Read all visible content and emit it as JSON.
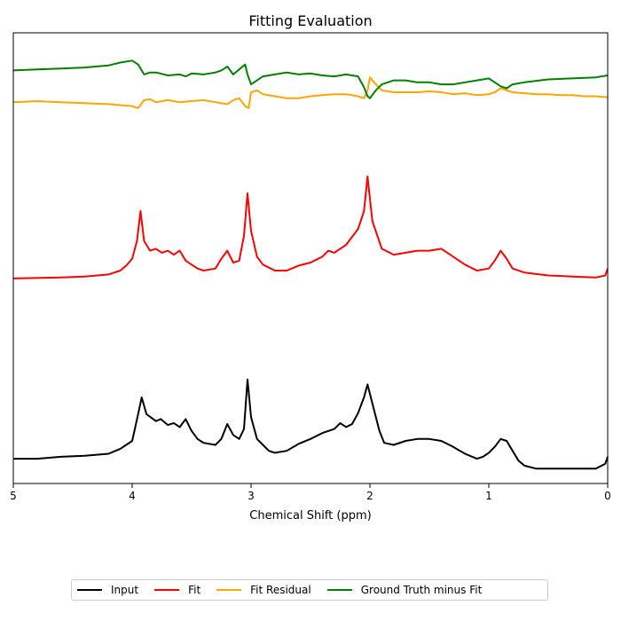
{
  "chart_data": {
    "type": "line",
    "title": "Fitting Evaluation",
    "xlabel": "Chemical Shift (ppm)",
    "ylabel": "",
    "xlim": [
      5,
      0
    ],
    "x_inverted": true,
    "x_ticks": [
      5,
      4,
      3,
      2,
      1,
      0
    ],
    "y_ticks_visible": false,
    "grid": false,
    "legend_position": "bottom-center",
    "series": [
      {
        "name": "Input",
        "color": "#000000",
        "x": [
          5.0,
          4.8,
          4.6,
          4.4,
          4.2,
          4.1,
          4.0,
          3.95,
          3.92,
          3.88,
          3.8,
          3.76,
          3.7,
          3.65,
          3.6,
          3.55,
          3.5,
          3.45,
          3.4,
          3.3,
          3.25,
          3.2,
          3.15,
          3.1,
          3.06,
          3.03,
          3.0,
          2.95,
          2.9,
          2.85,
          2.8,
          2.7,
          2.6,
          2.5,
          2.4,
          2.3,
          2.25,
          2.2,
          2.15,
          2.1,
          2.05,
          2.02,
          1.98,
          1.92,
          1.88,
          1.8,
          1.7,
          1.6,
          1.5,
          1.4,
          1.3,
          1.2,
          1.1,
          1.05,
          1.0,
          0.95,
          0.9,
          0.85,
          0.8,
          0.75,
          0.7,
          0.6,
          0.5,
          0.4,
          0.3,
          0.2,
          0.1,
          0.02,
          0.0
        ],
        "y": [
          0.1,
          0.1,
          0.12,
          0.13,
          0.15,
          0.2,
          0.28,
          0.55,
          0.72,
          0.55,
          0.48,
          0.5,
          0.44,
          0.46,
          0.42,
          0.5,
          0.38,
          0.3,
          0.26,
          0.24,
          0.3,
          0.45,
          0.34,
          0.3,
          0.4,
          0.9,
          0.52,
          0.3,
          0.24,
          0.18,
          0.16,
          0.18,
          0.25,
          0.3,
          0.36,
          0.4,
          0.46,
          0.42,
          0.45,
          0.56,
          0.72,
          0.85,
          0.66,
          0.38,
          0.26,
          0.24,
          0.28,
          0.3,
          0.3,
          0.28,
          0.22,
          0.15,
          0.1,
          0.12,
          0.16,
          0.22,
          0.3,
          0.28,
          0.18,
          0.08,
          0.03,
          0.0,
          0.0,
          0.0,
          0.0,
          0.0,
          0.0,
          0.05,
          0.12
        ]
      },
      {
        "name": "Fit",
        "color": "#ff0000",
        "x": [
          5.0,
          4.6,
          4.4,
          4.2,
          4.1,
          4.05,
          4.0,
          3.96,
          3.93,
          3.9,
          3.85,
          3.8,
          3.75,
          3.7,
          3.65,
          3.6,
          3.55,
          3.5,
          3.45,
          3.4,
          3.3,
          3.25,
          3.2,
          3.15,
          3.1,
          3.06,
          3.03,
          3.0,
          2.95,
          2.9,
          2.8,
          2.7,
          2.6,
          2.5,
          2.4,
          2.35,
          2.3,
          2.25,
          2.2,
          2.1,
          2.05,
          2.02,
          1.98,
          1.9,
          1.8,
          1.7,
          1.6,
          1.5,
          1.4,
          1.3,
          1.2,
          1.1,
          1.0,
          0.95,
          0.9,
          0.85,
          0.8,
          0.7,
          0.5,
          0.3,
          0.1,
          0.02,
          0.0
        ],
        "y": [
          1.92,
          1.93,
          1.94,
          1.96,
          2.0,
          2.05,
          2.12,
          2.3,
          2.6,
          2.3,
          2.2,
          2.22,
          2.18,
          2.2,
          2.16,
          2.2,
          2.1,
          2.06,
          2.02,
          2.0,
          2.02,
          2.12,
          2.2,
          2.08,
          2.1,
          2.35,
          2.78,
          2.4,
          2.14,
          2.06,
          2.0,
          2.0,
          2.05,
          2.08,
          2.14,
          2.2,
          2.18,
          2.22,
          2.26,
          2.42,
          2.6,
          2.95,
          2.5,
          2.22,
          2.16,
          2.18,
          2.2,
          2.2,
          2.22,
          2.14,
          2.06,
          2.0,
          2.02,
          2.1,
          2.2,
          2.12,
          2.02,
          1.98,
          1.95,
          1.94,
          1.93,
          1.95,
          2.02
        ]
      },
      {
        "name": "Fit Residual",
        "color": "#ffa500",
        "x": [
          5.0,
          4.8,
          4.6,
          4.4,
          4.2,
          4.1,
          4.0,
          3.95,
          3.9,
          3.85,
          3.8,
          3.7,
          3.6,
          3.5,
          3.4,
          3.3,
          3.2,
          3.15,
          3.1,
          3.05,
          3.02,
          3.0,
          2.95,
          2.9,
          2.8,
          2.7,
          2.6,
          2.5,
          2.4,
          2.3,
          2.2,
          2.1,
          2.05,
          2.02,
          2.0,
          1.95,
          1.9,
          1.8,
          1.7,
          1.6,
          1.5,
          1.4,
          1.3,
          1.2,
          1.1,
          1.0,
          0.95,
          0.9,
          0.8,
          0.7,
          0.6,
          0.5,
          0.4,
          0.3,
          0.2,
          0.1,
          0.0
        ],
        "y": [
          3.7,
          3.71,
          3.7,
          3.69,
          3.68,
          3.67,
          3.66,
          3.64,
          3.72,
          3.73,
          3.7,
          3.72,
          3.7,
          3.71,
          3.72,
          3.7,
          3.68,
          3.72,
          3.74,
          3.66,
          3.64,
          3.8,
          3.82,
          3.78,
          3.76,
          3.74,
          3.74,
          3.76,
          3.77,
          3.78,
          3.78,
          3.76,
          3.74,
          3.82,
          3.95,
          3.88,
          3.82,
          3.8,
          3.8,
          3.8,
          3.81,
          3.8,
          3.78,
          3.79,
          3.77,
          3.78,
          3.8,
          3.84,
          3.8,
          3.79,
          3.78,
          3.78,
          3.77,
          3.77,
          3.76,
          3.76,
          3.75
        ]
      },
      {
        "name": "Ground Truth minus Fit",
        "color": "#008000",
        "x": [
          5.0,
          4.8,
          4.6,
          4.4,
          4.2,
          4.1,
          4.0,
          3.95,
          3.9,
          3.85,
          3.8,
          3.7,
          3.6,
          3.55,
          3.5,
          3.4,
          3.3,
          3.25,
          3.2,
          3.15,
          3.05,
          3.03,
          3.0,
          2.95,
          2.9,
          2.8,
          2.7,
          2.6,
          2.5,
          2.4,
          2.3,
          2.2,
          2.1,
          2.05,
          2.02,
          2.0,
          1.95,
          1.9,
          1.8,
          1.7,
          1.6,
          1.5,
          1.4,
          1.3,
          1.2,
          1.1,
          1.0,
          0.95,
          0.9,
          0.85,
          0.8,
          0.7,
          0.5,
          0.3,
          0.1,
          0.0
        ],
        "y": [
          4.02,
          4.03,
          4.04,
          4.05,
          4.07,
          4.1,
          4.12,
          4.08,
          3.98,
          4.0,
          4.0,
          3.97,
          3.98,
          3.96,
          3.99,
          3.98,
          4.0,
          4.02,
          4.06,
          3.98,
          4.08,
          3.98,
          3.88,
          3.92,
          3.96,
          3.98,
          4.0,
          3.98,
          3.99,
          3.97,
          3.96,
          3.98,
          3.96,
          3.85,
          3.76,
          3.74,
          3.82,
          3.88,
          3.92,
          3.92,
          3.9,
          3.9,
          3.88,
          3.88,
          3.9,
          3.92,
          3.94,
          3.9,
          3.86,
          3.84,
          3.88,
          3.9,
          3.93,
          3.94,
          3.95,
          3.97
        ]
      }
    ]
  }
}
